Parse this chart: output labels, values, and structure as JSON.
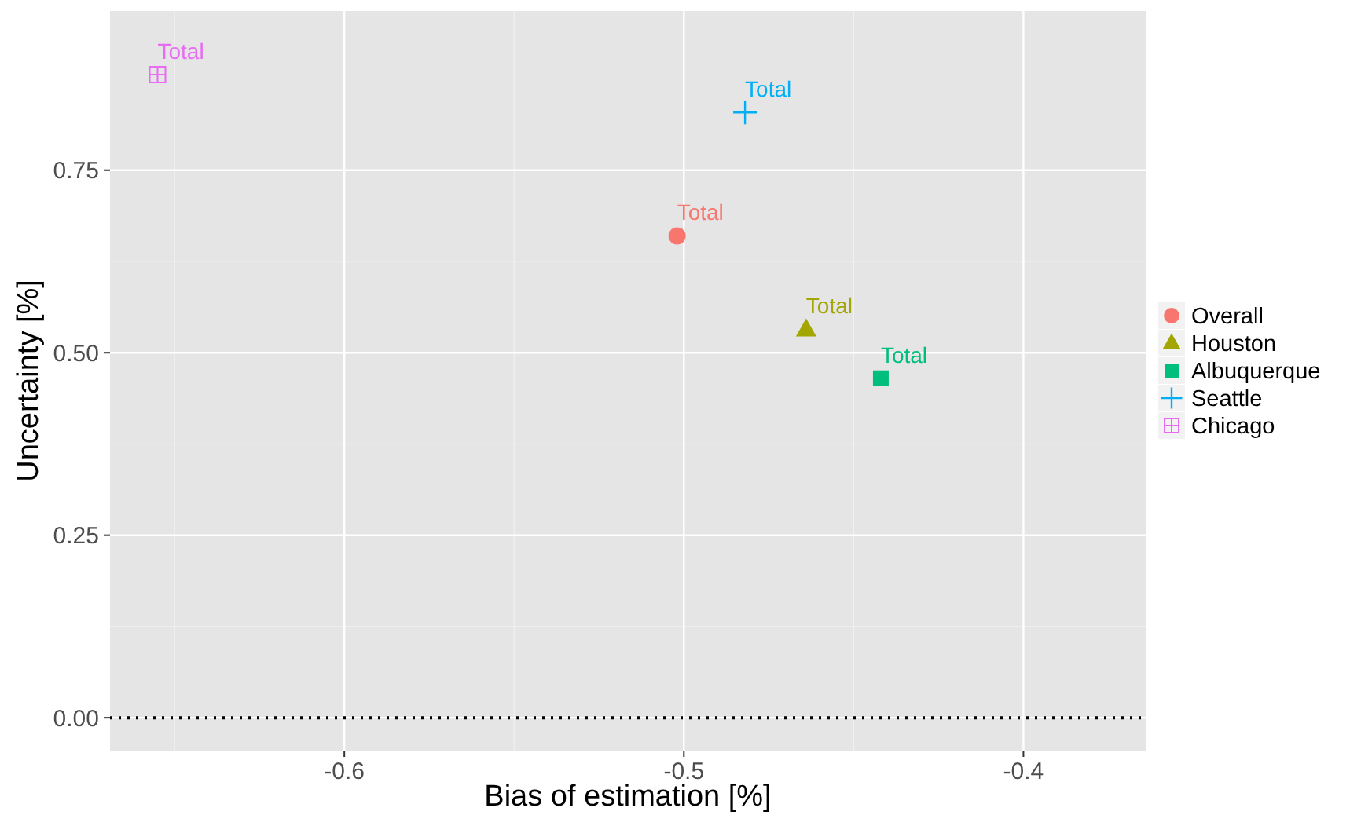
{
  "chart_data": {
    "type": "scatter",
    "xlabel": "Bias of estimation [%]",
    "ylabel": "Uncertainty [%]",
    "xlim": [
      -0.669,
      -0.364
    ],
    "ylim": [
      -0.045,
      0.968
    ],
    "xticks": [
      -0.6,
      -0.5,
      -0.4
    ],
    "yticks": [
      {
        "value": 0,
        "label": "0.00"
      },
      {
        "value": 0.25,
        "label": "0.25"
      },
      {
        "value": 0.5,
        "label": "0.50"
      },
      {
        "value": 0.75,
        "label": "0.75"
      }
    ],
    "grid": true,
    "legend": "right",
    "series": [
      {
        "name": "Overall",
        "color": "#f8766d",
        "marker": "circle",
        "x": [
          -0.502
        ],
        "values": [
          0.66
        ]
      },
      {
        "name": "Houston",
        "color": "#a3a500",
        "marker": "triangle",
        "x": [
          -0.464
        ],
        "values": [
          0.532
        ]
      },
      {
        "name": "Albuquerque",
        "color": "#00bf7d",
        "marker": "square",
        "x": [
          -0.442
        ],
        "values": [
          0.465
        ]
      },
      {
        "name": "Seattle",
        "color": "#00b0f6",
        "marker": "cross",
        "x": [
          -0.482
        ],
        "values": [
          0.829
        ]
      },
      {
        "name": "Chicago",
        "color": "#e76bf3",
        "x": [
          -0.655
        ],
        "values": [
          0.881
        ]
      }
    ],
    "annotations": [
      {
        "text": "Total",
        "x": -0.502,
        "y": 0.66
      },
      {
        "text": "Total",
        "x": -0.464,
        "y": 0.532
      },
      {
        "text": "Total",
        "x": -0.442,
        "y": 0.465
      },
      {
        "text": "Total",
        "x": -0.482,
        "y": 0.829
      },
      {
        "text": "Total",
        "x": -0.655,
        "y": 0.881
      }
    ],
    "ref_lines": [
      {
        "axis": "y",
        "value": 0,
        "color": "#000000",
        "line_style": "dotted"
      }
    ]
  }
}
